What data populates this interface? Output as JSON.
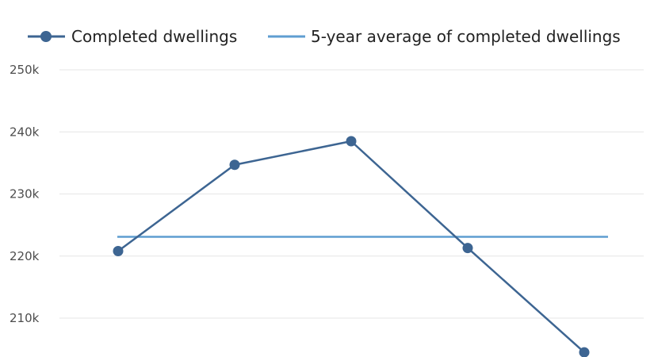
{
  "chart_data": {
    "type": "line",
    "categories": [
      "",
      "",
      "",
      "",
      ""
    ],
    "y_ticks": [
      210000,
      220000,
      230000,
      240000,
      250000
    ],
    "y_tick_labels": [
      "210k",
      "220k",
      "230k",
      "240k",
      "250k"
    ],
    "ylim": [
      204000,
      250000
    ],
    "grid": true,
    "legend_position": "top",
    "series": [
      {
        "name": "Completed dwellings",
        "values": [
          220800,
          234700,
          238500,
          221300,
          204500
        ],
        "color": "#3d6592",
        "marker": "circle"
      },
      {
        "name": "5-year average of completed dwellings",
        "values": [
          223100,
          223100,
          223100,
          223100,
          223100
        ],
        "color": "#5f9ed1",
        "marker": "none"
      }
    ]
  }
}
